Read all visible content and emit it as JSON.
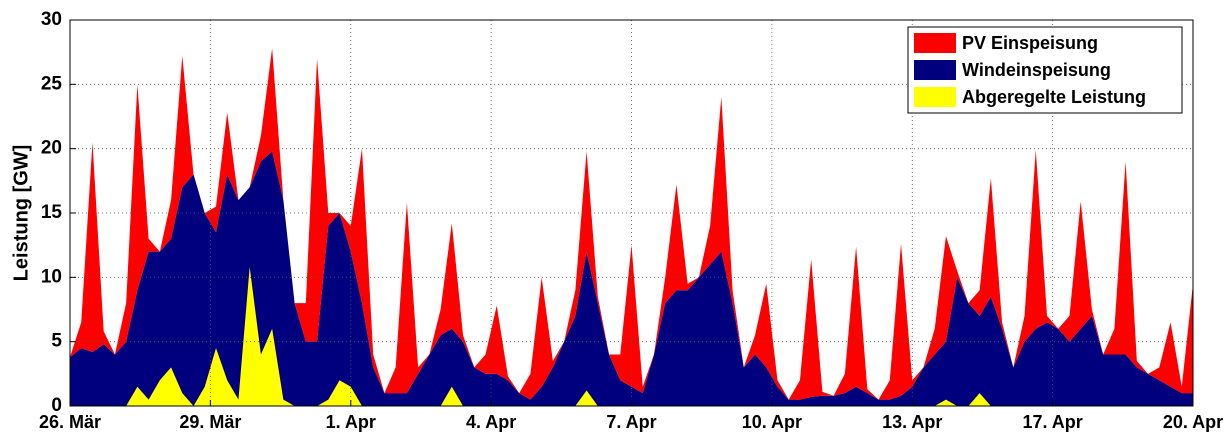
{
  "chart_data": {
    "type": "area",
    "ylabel": "Leistung [GW]",
    "x": [
      0,
      0.25,
      0.5,
      0.75,
      1,
      1.25,
      1.5,
      1.75,
      2,
      2.25,
      2.5,
      2.75,
      3,
      3.25,
      3.5,
      3.75,
      4,
      4.25,
      4.5,
      4.75,
      5,
      5.25,
      5.5,
      5.75,
      6,
      6.25,
      6.5,
      6.75,
      7,
      7.25,
      7.5,
      7.75,
      8,
      8.25,
      8.5,
      8.75,
      9,
      9.25,
      9.5,
      9.75,
      10,
      10.25,
      10.5,
      10.75,
      11,
      11.25,
      11.5,
      11.75,
      12,
      12.25,
      12.5,
      12.75,
      13,
      13.25,
      13.5,
      13.75,
      14,
      14.25,
      14.5,
      14.75,
      15,
      15.25,
      15.5,
      15.75,
      16,
      16.25,
      16.5,
      16.75,
      17,
      17.25,
      17.5,
      17.75,
      18,
      18.25,
      18.5,
      18.75,
      19,
      19.25,
      19.5,
      19.75,
      20,
      20.25,
      20.5,
      20.75,
      21,
      21.25,
      21.5,
      21.75,
      22,
      22.25,
      22.5,
      22.75,
      23,
      23.25,
      23.5,
      23.75,
      24,
      24.25,
      24.5,
      24.75,
      25
    ],
    "series": [
      {
        "name": "Windeinspeisung",
        "color": "#00007f",
        "stack": true,
        "values": [
          3.8,
          4.5,
          4.2,
          4.8,
          4,
          5,
          9,
          12,
          12,
          13,
          17,
          18,
          15,
          13.5,
          18,
          16,
          17,
          19,
          19.8,
          16,
          8,
          5,
          5,
          14,
          15,
          12,
          8,
          3,
          1,
          1,
          1,
          2.5,
          4,
          5.5,
          6,
          5,
          3,
          2.5,
          2.5,
          2,
          1,
          0.5,
          1.5,
          3,
          5,
          7,
          12,
          8,
          4,
          2,
          1.5,
          1,
          4,
          8,
          9,
          9,
          10,
          11,
          12,
          8,
          3,
          4,
          3,
          1.5,
          0.5,
          0.5,
          0.7,
          0.8,
          0.8,
          1,
          1.5,
          1,
          0.5,
          0.5,
          0.8,
          1.5,
          3,
          4,
          5,
          10,
          8,
          7,
          8.5,
          6,
          3,
          5,
          6,
          6.5,
          6,
          5,
          6,
          7,
          4,
          4,
          4,
          3,
          2.5,
          2,
          1.5,
          1,
          1
        ]
      },
      {
        "name": "PV Einspeisung",
        "color": "#ff0000",
        "stack": true,
        "values": [
          0,
          2,
          16.3,
          1,
          0,
          3,
          16,
          1,
          0,
          3,
          10.2,
          0,
          0,
          2,
          4.8,
          0,
          0,
          2,
          8,
          0,
          0,
          3,
          22,
          1,
          0,
          2,
          12,
          1,
          0,
          2,
          14.8,
          0.5,
          0,
          2,
          8.2,
          0.5,
          0,
          1.5,
          5.3,
          0.3,
          0,
          2,
          8.5,
          0.5,
          0,
          2,
          7.8,
          0.5,
          0,
          2,
          11,
          0.5,
          0,
          2,
          8.2,
          0.5,
          0,
          3,
          12,
          1,
          0,
          1.5,
          6.5,
          0.5,
          0,
          1.5,
          10.7,
          0.3,
          0,
          1.5,
          10.9,
          0.3,
          0,
          1.5,
          11.8,
          0.5,
          0,
          2,
          8.2,
          0.5,
          0,
          2,
          9.2,
          0.5,
          0,
          2,
          13.9,
          0.5,
          0,
          2,
          9.9,
          0.5,
          0,
          2,
          15,
          0.5,
          0,
          1,
          5,
          0.5,
          8.5
        ]
      },
      {
        "name": "Abgeregelte Leistung",
        "color": "#ffff00",
        "stack": false,
        "values": [
          0,
          0,
          0,
          0,
          0,
          0,
          1.5,
          0.5,
          2,
          3,
          1,
          0,
          1.5,
          4.5,
          2,
          0.5,
          10.8,
          4,
          6,
          0.5,
          0,
          0,
          0,
          0.5,
          2,
          1.5,
          0,
          0,
          0,
          0,
          0,
          0,
          0,
          0,
          1.5,
          0,
          0,
          0,
          0,
          0,
          0,
          0,
          0,
          0,
          0,
          0,
          1.2,
          0,
          0,
          0,
          0,
          0,
          0,
          0,
          0,
          0,
          0,
          0,
          0,
          0,
          0,
          0,
          0,
          0,
          0,
          0,
          0,
          0,
          0,
          0,
          0,
          0,
          0,
          0,
          0,
          0,
          0,
          0,
          0.5,
          0,
          0,
          1,
          0,
          0,
          0,
          0,
          0,
          0,
          0,
          0,
          0,
          0,
          0,
          0,
          0,
          0,
          0,
          0,
          0,
          0,
          0
        ]
      }
    ],
    "legend_order": [
      1,
      0,
      2
    ],
    "legend": "upper right",
    "grid": true,
    "xlim": [
      0,
      25
    ],
    "xticks": [
      {
        "value": 0,
        "label": "26. Mär"
      },
      {
        "value": 3.125,
        "label": "29. Mär"
      },
      {
        "value": 6.25,
        "label": "1. Apr"
      },
      {
        "value": 9.375,
        "label": "4. Apr"
      },
      {
        "value": 12.5,
        "label": "7. Apr"
      },
      {
        "value": 15.625,
        "label": "10. Apr"
      },
      {
        "value": 18.75,
        "label": "13. Apr"
      },
      {
        "value": 21.875,
        "label": "17. Apr"
      },
      {
        "value": 25,
        "label": "20. Apr"
      }
    ],
    "ylim": [
      0,
      30
    ],
    "yticks": [
      0,
      5,
      10,
      15,
      20,
      25,
      30
    ]
  }
}
